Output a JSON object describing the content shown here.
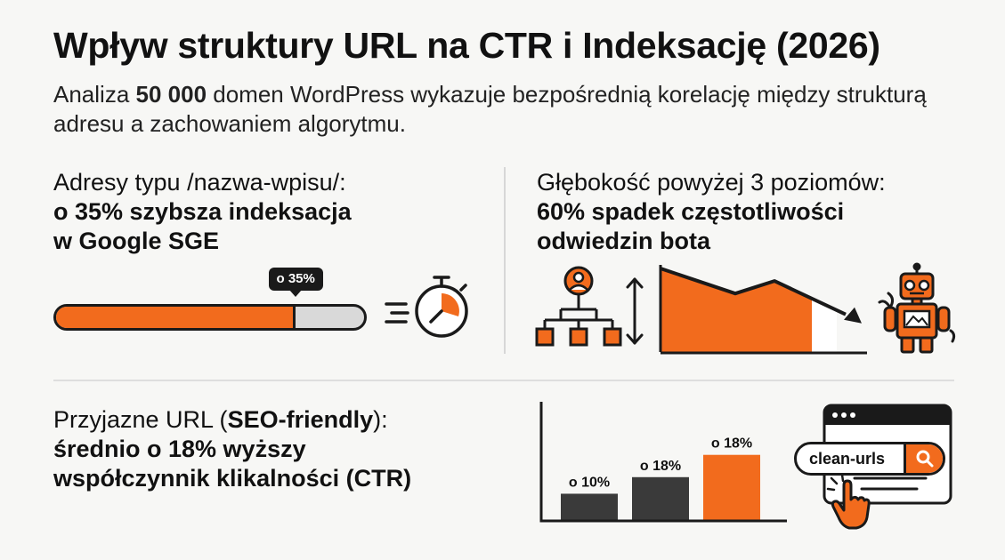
{
  "header": {
    "title": "Wpływ struktury URL na CTR i Indeksację (2026)",
    "subtitle_prefix": "Analiza ",
    "subtitle_bold": "50 000",
    "subtitle_suffix": " domen WordPress wykazuje bezpośrednią korelację między strukturą adresu a zachowaniem algorytmu."
  },
  "indexing": {
    "label": "Adresy typu /nazwa-wpisu/:",
    "line1": "o 35% szybsza indeksacja",
    "line2": "w Google SGE",
    "badge": "o 35%",
    "progress_percent": 35
  },
  "depth": {
    "label": "Głębokość powyżej 3 poziomów:",
    "line1": "60% spadek częstotliwości",
    "line2": "odwiedzin bota"
  },
  "ctr": {
    "label_prefix": "Przyjazne URL (",
    "label_bold": "SEO-friendly",
    "label_suffix": "):",
    "line1": "średnio o 18% wyższy",
    "line2": "współczynnik klikalności (CTR)"
  },
  "search_box": {
    "value": "clean-urls"
  },
  "colors": {
    "accent": "#f26b1d",
    "dark": "#3a3a3a",
    "ink": "#1a1a1a"
  },
  "icons": [
    "stopwatch-icon",
    "sitemap-icon",
    "vertical-arrow-icon",
    "robot-icon",
    "search-icon",
    "hand-cursor-icon",
    "browser-window-icon"
  ],
  "chart_data": {
    "type": "bar",
    "categories": [
      "",
      "",
      ""
    ],
    "values": [
      10,
      18,
      18
    ],
    "data_labels": [
      "o 10%",
      "o 18%",
      "o 18%"
    ],
    "colors": [
      "#3a3a3a",
      "#3a3a3a",
      "#f26b1d"
    ],
    "ylim": [
      0,
      25
    ]
  },
  "decline_chart": {
    "type": "area",
    "values": [
      100,
      70,
      85,
      40
    ],
    "highlight_start_index": 2
  }
}
